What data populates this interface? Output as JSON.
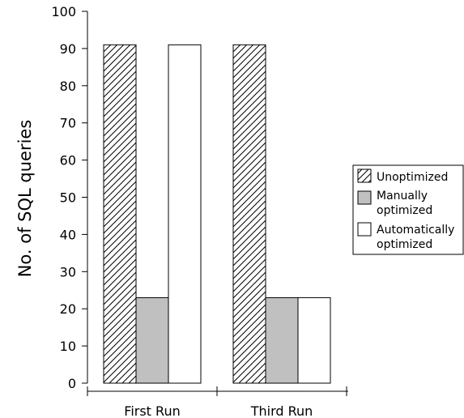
{
  "chart_data": {
    "type": "bar",
    "title": "",
    "xlabel": "",
    "ylabel": "No. of SQL queries",
    "ylim": [
      0,
      100
    ],
    "yticks": [
      0,
      10,
      20,
      30,
      40,
      50,
      60,
      70,
      80,
      90,
      100
    ],
    "categories": [
      "First Run",
      "Third Run"
    ],
    "series": [
      {
        "name": "Unoptimized",
        "values": [
          91,
          91
        ],
        "fill": "#ffffff",
        "pattern": "hatch"
      },
      {
        "name": "Manually optimized",
        "label_lines": [
          "Manually",
          "optimized"
        ],
        "values": [
          23,
          23
        ],
        "fill": "#c0c0c0",
        "pattern": "solid"
      },
      {
        "name": "Automatically optimized",
        "label_lines": [
          "Automatically",
          "optimized"
        ],
        "values": [
          91,
          23
        ],
        "fill": "#ffffff",
        "pattern": "solid"
      }
    ],
    "grid": false,
    "legend_position": "right"
  }
}
